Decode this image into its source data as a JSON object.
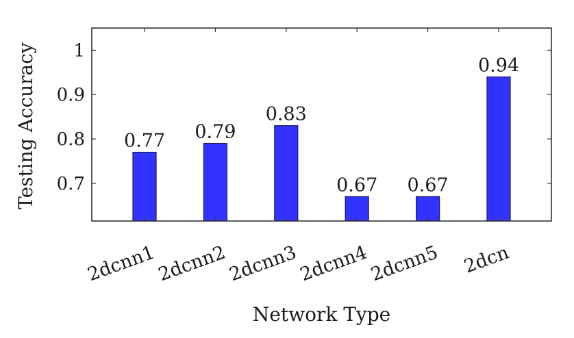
{
  "chart_data": {
    "type": "bar",
    "categories": [
      "2dcnn1",
      "2dcnn2",
      "2dcnn3",
      "2dcnn4",
      "2dcnn5",
      "2dcn"
    ],
    "values": [
      0.77,
      0.79,
      0.83,
      0.67,
      0.67,
      0.94
    ],
    "data_labels": [
      "0.77",
      "0.79",
      "0.83",
      "0.67",
      "0.67",
      "0.94"
    ],
    "xlabel": "Network Type",
    "ylabel": "Testing Accuracy",
    "ylim": [
      0.615,
      1.05
    ],
    "yticks": [
      0.7,
      0.8,
      0.9,
      1.0
    ],
    "ytick_labels": [
      "0.7",
      "0.8",
      "0.9",
      "1"
    ],
    "grid": false,
    "bar_color": "#3333ff",
    "bar_edge_color": "#1a1a66"
  }
}
